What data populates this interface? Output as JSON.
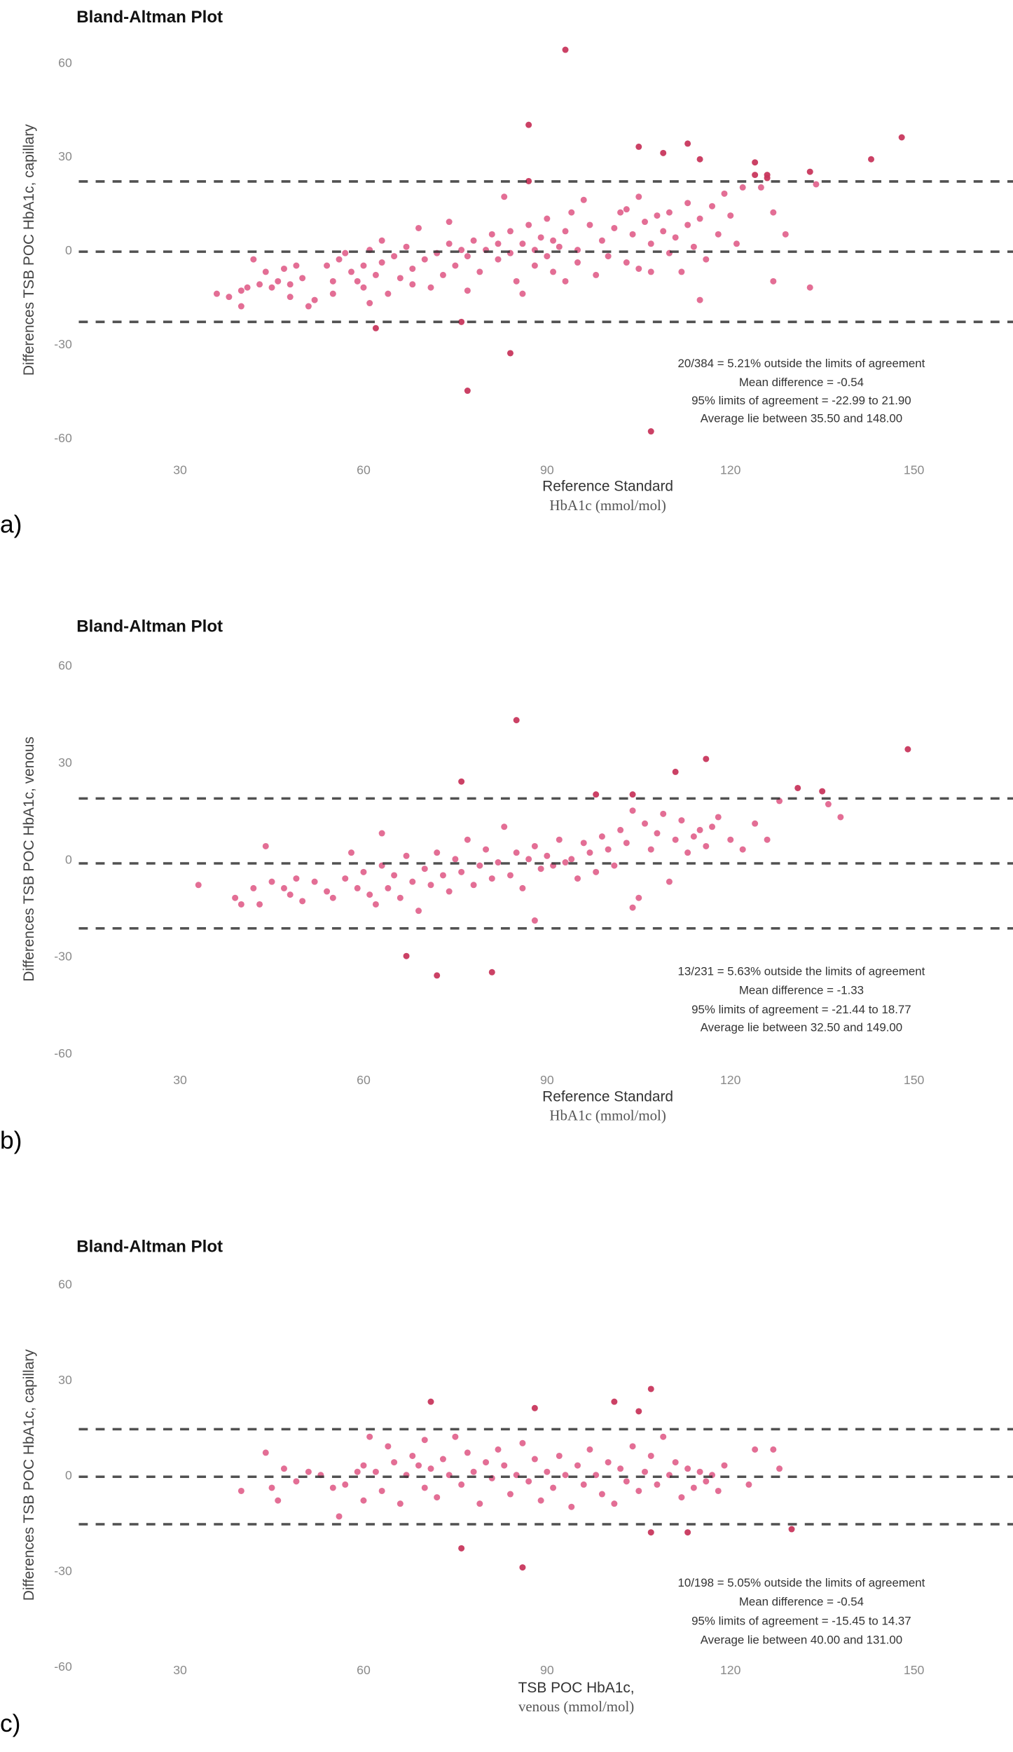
{
  "chart_data": [
    {
      "type": "scatter",
      "panel_label": "a)",
      "title": "Bland-Altman Plot",
      "ylabel": "Differences TSB POC HbA1c, capillary",
      "xlabel_lines": [
        "Reference Standard",
        "HbA1c (mmol/mol)"
      ],
      "xticks": [
        30,
        60,
        90,
        120,
        150
      ],
      "yticks": [
        60,
        30,
        0,
        -30,
        -60
      ],
      "xlim": [
        0,
        170
      ],
      "ylim": [
        -66,
        68
      ],
      "mean_difference": -0.54,
      "limits_of_agreement": [
        -22.99,
        21.9
      ],
      "annotations": [
        "20/384 = 5.21% outside the limits of agreement",
        "Mean difference = -0.54",
        "95% limits of agreement = -22.99 to 21.90",
        "Average lie between 35.50 and 148.00"
      ],
      "points": [
        [
          36,
          -14
        ],
        [
          38,
          -15
        ],
        [
          40,
          -13
        ],
        [
          40,
          -18
        ],
        [
          41,
          -12
        ],
        [
          42,
          -3
        ],
        [
          43,
          -11
        ],
        [
          44,
          -7
        ],
        [
          45,
          -12
        ],
        [
          46,
          -10
        ],
        [
          47,
          -6
        ],
        [
          48,
          -11
        ],
        [
          48,
          -15
        ],
        [
          49,
          -5
        ],
        [
          50,
          -9
        ],
        [
          51,
          -18
        ],
        [
          52,
          -16
        ],
        [
          54,
          -5
        ],
        [
          55,
          -10
        ],
        [
          55,
          -14
        ],
        [
          56,
          -3
        ],
        [
          57,
          -1
        ],
        [
          58,
          -7
        ],
        [
          59,
          -10
        ],
        [
          60,
          -5
        ],
        [
          60,
          -12
        ],
        [
          61,
          0
        ],
        [
          61,
          -17
        ],
        [
          62,
          -8
        ],
        [
          63,
          3
        ],
        [
          63,
          -4
        ],
        [
          64,
          -14
        ],
        [
          65,
          -2
        ],
        [
          66,
          -9
        ],
        [
          67,
          1
        ],
        [
          68,
          -6
        ],
        [
          68,
          -11
        ],
        [
          69,
          7
        ],
        [
          70,
          -3
        ],
        [
          71,
          -12
        ],
        [
          72,
          -1
        ],
        [
          73,
          -8
        ],
        [
          74,
          2
        ],
        [
          74,
          9
        ],
        [
          75,
          -5
        ],
        [
          76,
          0
        ],
        [
          77,
          -2
        ],
        [
          77,
          -13
        ],
        [
          78,
          3
        ],
        [
          79,
          -7
        ],
        [
          80,
          0
        ],
        [
          81,
          5
        ],
        [
          82,
          -3
        ],
        [
          82,
          2
        ],
        [
          83,
          17
        ],
        [
          84,
          -1
        ],
        [
          84,
          6
        ],
        [
          85,
          -10
        ],
        [
          86,
          2
        ],
        [
          86,
          -14
        ],
        [
          87,
          8
        ],
        [
          88,
          0
        ],
        [
          88,
          -5
        ],
        [
          89,
          4
        ],
        [
          90,
          -2
        ],
        [
          90,
          10
        ],
        [
          91,
          -7
        ],
        [
          91,
          3
        ],
        [
          92,
          1
        ],
        [
          93,
          6
        ],
        [
          93,
          -10
        ],
        [
          94,
          12
        ],
        [
          95,
          -4
        ],
        [
          95,
          0
        ],
        [
          96,
          16
        ],
        [
          97,
          8
        ],
        [
          98,
          -8
        ],
        [
          99,
          3
        ],
        [
          100,
          -2
        ],
        [
          101,
          7
        ],
        [
          102,
          12
        ],
        [
          103,
          -4
        ],
        [
          103,
          13
        ],
        [
          104,
          5
        ],
        [
          105,
          -6
        ],
        [
          105,
          17
        ],
        [
          106,
          9
        ],
        [
          107,
          -7
        ],
        [
          107,
          2
        ],
        [
          108,
          11
        ],
        [
          109,
          6
        ],
        [
          110,
          -1
        ],
        [
          110,
          12
        ],
        [
          111,
          4
        ],
        [
          112,
          -7
        ],
        [
          113,
          8
        ],
        [
          113,
          15
        ],
        [
          114,
          1
        ],
        [
          115,
          10
        ],
        [
          115,
          -16
        ],
        [
          116,
          -3
        ],
        [
          117,
          14
        ],
        [
          118,
          5
        ],
        [
          119,
          18
        ],
        [
          120,
          11
        ],
        [
          121,
          2
        ],
        [
          122,
          20
        ],
        [
          125,
          20
        ],
        [
          127,
          12
        ],
        [
          127,
          -10
        ],
        [
          129,
          5
        ],
        [
          133,
          -12
        ],
        [
          134,
          21
        ],
        [
          93,
          64
        ],
        [
          87,
          40
        ],
        [
          87,
          22
        ],
        [
          105,
          33
        ],
        [
          109,
          31
        ],
        [
          113,
          34
        ],
        [
          115,
          29
        ],
        [
          124,
          28
        ],
        [
          124,
          24
        ],
        [
          126,
          24
        ],
        [
          126,
          23
        ],
        [
          133,
          25
        ],
        [
          143,
          29
        ],
        [
          148,
          36
        ],
        [
          62,
          -25
        ],
        [
          84,
          -33
        ],
        [
          77,
          -45
        ],
        [
          107,
          -58
        ],
        [
          76,
          -23
        ]
      ]
    },
    {
      "type": "scatter",
      "panel_label": "b)",
      "title": "Bland-Altman Plot",
      "ylabel": "Differences TSB POC HbA1c, venous",
      "xlabel_lines": [
        "Reference Standard",
        "HbA1c (mmol/mol)"
      ],
      "xticks": [
        30,
        60,
        90,
        120,
        150
      ],
      "yticks": [
        60,
        30,
        0,
        -30,
        -60
      ],
      "xlim": [
        0,
        170
      ],
      "ylim": [
        -66,
        68
      ],
      "mean_difference": -1.33,
      "limits_of_agreement": [
        -21.44,
        18.77
      ],
      "annotations": [
        "13/231 = 5.63% outside the limits of agreement",
        "Mean difference = -1.33",
        "95% limits of agreement = -21.44 to 18.77",
        "Average lie between 32.50 and 149.00"
      ],
      "points": [
        [
          33,
          -8
        ],
        [
          39,
          -12
        ],
        [
          40,
          -14
        ],
        [
          42,
          -9
        ],
        [
          43,
          -14
        ],
        [
          44,
          4
        ],
        [
          45,
          -7
        ],
        [
          47,
          -9
        ],
        [
          48,
          -11
        ],
        [
          49,
          -6
        ],
        [
          50,
          -13
        ],
        [
          52,
          -7
        ],
        [
          54,
          -10
        ],
        [
          55,
          -12
        ],
        [
          57,
          -6
        ],
        [
          58,
          2
        ],
        [
          59,
          -9
        ],
        [
          60,
          -4
        ],
        [
          61,
          -11
        ],
        [
          62,
          -14
        ],
        [
          63,
          8
        ],
        [
          63,
          -2
        ],
        [
          64,
          -9
        ],
        [
          65,
          -5
        ],
        [
          66,
          -12
        ],
        [
          67,
          1
        ],
        [
          68,
          -7
        ],
        [
          69,
          -16
        ],
        [
          70,
          -3
        ],
        [
          71,
          -8
        ],
        [
          72,
          2
        ],
        [
          73,
          -5
        ],
        [
          74,
          -10
        ],
        [
          75,
          0
        ],
        [
          76,
          -4
        ],
        [
          77,
          6
        ],
        [
          78,
          -8
        ],
        [
          79,
          -2
        ],
        [
          80,
          3
        ],
        [
          81,
          -6
        ],
        [
          82,
          -1
        ],
        [
          83,
          10
        ],
        [
          84,
          -5
        ],
        [
          85,
          2
        ],
        [
          86,
          -9
        ],
        [
          87,
          0
        ],
        [
          88,
          4
        ],
        [
          89,
          -3
        ],
        [
          90,
          1
        ],
        [
          91,
          -2
        ],
        [
          92,
          6
        ],
        [
          93,
          -1
        ],
        [
          94,
          0
        ],
        [
          95,
          -6
        ],
        [
          96,
          5
        ],
        [
          97,
          2
        ],
        [
          98,
          -4
        ],
        [
          99,
          7
        ],
        [
          100,
          3
        ],
        [
          101,
          -2
        ],
        [
          102,
          9
        ],
        [
          103,
          5
        ],
        [
          104,
          15
        ],
        [
          104,
          -15
        ],
        [
          105,
          -12
        ],
        [
          106,
          11
        ],
        [
          107,
          3
        ],
        [
          108,
          8
        ],
        [
          109,
          14
        ],
        [
          110,
          -7
        ],
        [
          111,
          6
        ],
        [
          112,
          12
        ],
        [
          113,
          2
        ],
        [
          114,
          7
        ],
        [
          115,
          9
        ],
        [
          116,
          4
        ],
        [
          117,
          10
        ],
        [
          118,
          13
        ],
        [
          120,
          6
        ],
        [
          122,
          3
        ],
        [
          124,
          11
        ],
        [
          126,
          6
        ],
        [
          128,
          18
        ],
        [
          136,
          17
        ],
        [
          138,
          13
        ],
        [
          85,
          43
        ],
        [
          76,
          24
        ],
        [
          111,
          27
        ],
        [
          116,
          31
        ],
        [
          131,
          22
        ],
        [
          135,
          21
        ],
        [
          149,
          34
        ],
        [
          98,
          20
        ],
        [
          104,
          20
        ],
        [
          67,
          -30
        ],
        [
          72,
          -36
        ],
        [
          81,
          -35
        ],
        [
          88,
          -19
        ]
      ]
    },
    {
      "type": "scatter",
      "panel_label": "c)",
      "title": "Bland-Altman Plot",
      "ylabel": "Differences TSB POC HbA1c, capillary",
      "xlabel_lines": [
        "TSB POC HbA1c,",
        "venous (mmol/mol)"
      ],
      "xticks": [
        30,
        60,
        90,
        120,
        150
      ],
      "yticks": [
        60,
        30,
        0,
        -30,
        -60
      ],
      "xlim": [
        0,
        170
      ],
      "ylim": [
        -66,
        68
      ],
      "mean_difference": -0.54,
      "limits_of_agreement": [
        -15.45,
        14.37
      ],
      "annotations": [
        "10/198 = 5.05% outside the limits of agreement",
        "Mean difference = -0.54",
        "95% limits of agreement = -15.45 to 14.37",
        "Average lie between 40.00 and 131.00"
      ],
      "points": [
        [
          40,
          -5
        ],
        [
          44,
          7
        ],
        [
          45,
          -4
        ],
        [
          46,
          -8
        ],
        [
          47,
          2
        ],
        [
          49,
          -2
        ],
        [
          51,
          1
        ],
        [
          53,
          0
        ],
        [
          55,
          -4
        ],
        [
          57,
          -3
        ],
        [
          59,
          1
        ],
        [
          60,
          -8
        ],
        [
          60,
          3
        ],
        [
          61,
          12
        ],
        [
          62,
          1
        ],
        [
          63,
          -5
        ],
        [
          64,
          9
        ],
        [
          65,
          4
        ],
        [
          66,
          -9
        ],
        [
          67,
          0
        ],
        [
          68,
          6
        ],
        [
          69,
          3
        ],
        [
          70,
          -4
        ],
        [
          70,
          11
        ],
        [
          71,
          2
        ],
        [
          72,
          -7
        ],
        [
          73,
          5
        ],
        [
          74,
          0
        ],
        [
          75,
          12
        ],
        [
          76,
          -3
        ],
        [
          77,
          7
        ],
        [
          78,
          1
        ],
        [
          79,
          -9
        ],
        [
          80,
          4
        ],
        [
          81,
          -1
        ],
        [
          82,
          8
        ],
        [
          83,
          3
        ],
        [
          84,
          -6
        ],
        [
          85,
          0
        ],
        [
          86,
          10
        ],
        [
          87,
          -2
        ],
        [
          88,
          5
        ],
        [
          89,
          -8
        ],
        [
          90,
          1
        ],
        [
          91,
          -4
        ],
        [
          92,
          6
        ],
        [
          93,
          0
        ],
        [
          94,
          -10
        ],
        [
          95,
          3
        ],
        [
          96,
          -3
        ],
        [
          97,
          8
        ],
        [
          98,
          0
        ],
        [
          99,
          -6
        ],
        [
          100,
          4
        ],
        [
          101,
          -9
        ],
        [
          102,
          2
        ],
        [
          103,
          -2
        ],
        [
          104,
          9
        ],
        [
          105,
          -5
        ],
        [
          106,
          1
        ],
        [
          107,
          6
        ],
        [
          108,
          -3
        ],
        [
          109,
          12
        ],
        [
          110,
          0
        ],
        [
          111,
          4
        ],
        [
          112,
          -7
        ],
        [
          113,
          2
        ],
        [
          114,
          -4
        ],
        [
          115,
          1
        ],
        [
          116,
          -2
        ],
        [
          117,
          0
        ],
        [
          118,
          -5
        ],
        [
          119,
          3
        ],
        [
          123,
          -3
        ],
        [
          124,
          8
        ],
        [
          127,
          8
        ],
        [
          128,
          2
        ],
        [
          71,
          23
        ],
        [
          88,
          21
        ],
        [
          101,
          23
        ],
        [
          105,
          20
        ],
        [
          107,
          27
        ],
        [
          56,
          -13
        ],
        [
          76,
          -23
        ],
        [
          86,
          -29
        ],
        [
          107,
          -18
        ],
        [
          113,
          -18
        ],
        [
          130,
          -17
        ]
      ]
    }
  ],
  "colors": {
    "point": "#e2668f",
    "point_outside": "#c8375d",
    "dashed_line": "#333333"
  }
}
